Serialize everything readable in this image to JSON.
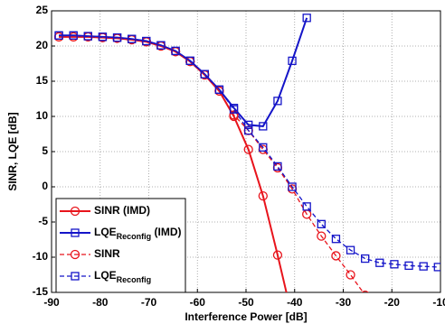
{
  "chart_data": {
    "type": "line",
    "xlabel": "Interference Power [dB]",
    "ylabel": "SINR, LQE [dB]",
    "xlim": [
      -90,
      -10
    ],
    "ylim": [
      -15,
      25
    ],
    "xticks": [
      -90,
      -80,
      -70,
      -60,
      -50,
      -40,
      -30,
      -20,
      -10
    ],
    "yticks": [
      -15,
      -10,
      -5,
      0,
      5,
      10,
      15,
      20,
      25
    ],
    "grid": true,
    "legend": "lower left",
    "series": [
      {
        "name": "SINR (IMD)",
        "color": "#e8141c",
        "marker": "circle",
        "dashed": false,
        "x": [
          -88.5,
          -85.5,
          -82.5,
          -79.5,
          -76.5,
          -73.5,
          -70.5,
          -67.5,
          -64.5,
          -61.5,
          -58.5,
          -55.5,
          -52.5,
          -49.5,
          -46.5,
          -43.5,
          -40.5
        ],
        "values": [
          21.3,
          21.3,
          21.3,
          21.2,
          21.1,
          20.9,
          20.6,
          20.0,
          19.2,
          17.8,
          15.9,
          13.6,
          10.0,
          5.3,
          -1.3,
          -9.7,
          -18.5
        ]
      },
      {
        "name": "LQE",
        "name_sub": "Reconfig",
        "name_suffix": " (IMD)",
        "color": "#1414c8",
        "marker": "square",
        "dashed": false,
        "x": [
          -88.5,
          -85.5,
          -82.5,
          -79.5,
          -76.5,
          -73.5,
          -70.5,
          -67.5,
          -64.5,
          -61.5,
          -58.5,
          -55.5,
          -52.5,
          -49.5,
          -46.5,
          -43.5,
          -40.5,
          -37.5
        ],
        "values": [
          21.5,
          21.5,
          21.4,
          21.3,
          21.2,
          21.0,
          20.7,
          20.1,
          19.3,
          17.9,
          16.0,
          13.8,
          11.2,
          8.8,
          8.6,
          12.2,
          17.9,
          24.0
        ]
      },
      {
        "name": "SINR",
        "color": "#e8141c",
        "marker": "circle",
        "dashed": true,
        "x": [
          -88.5,
          -85.5,
          -82.5,
          -79.5,
          -76.5,
          -73.5,
          -70.5,
          -67.5,
          -64.5,
          -61.5,
          -58.5,
          -55.5,
          -52.5,
          -49.5,
          -46.5,
          -43.5,
          -40.5,
          -37.5,
          -34.5,
          -31.5,
          -28.5,
          -25.5
        ],
        "values": [
          21.3,
          21.3,
          21.3,
          21.2,
          21.1,
          20.9,
          20.6,
          20.0,
          19.2,
          17.8,
          15.9,
          13.6,
          10.2,
          8.0,
          5.3,
          2.7,
          -0.3,
          -3.9,
          -7.0,
          -9.8,
          -12.5,
          -15.4
        ]
      },
      {
        "name": "LQE",
        "name_sub": "Reconfig",
        "color": "#1414c8",
        "marker": "square",
        "dashed": true,
        "x": [
          -88.5,
          -85.5,
          -82.5,
          -79.5,
          -76.5,
          -73.5,
          -70.5,
          -67.5,
          -64.5,
          -61.5,
          -58.5,
          -55.5,
          -52.5,
          -49.5,
          -46.5,
          -43.5,
          -40.5,
          -37.5,
          -34.5,
          -31.5,
          -28.5,
          -25.5,
          -22.5,
          -19.5,
          -16.5,
          -13.5,
          -10.5
        ],
        "values": [
          21.5,
          21.5,
          21.4,
          21.3,
          21.2,
          21.0,
          20.7,
          20.1,
          19.3,
          17.9,
          16.0,
          13.8,
          11.0,
          8.0,
          5.6,
          2.9,
          0.0,
          -2.8,
          -5.3,
          -7.4,
          -9.0,
          -10.2,
          -10.8,
          -11.0,
          -11.2,
          -11.3,
          -11.4
        ]
      }
    ]
  }
}
